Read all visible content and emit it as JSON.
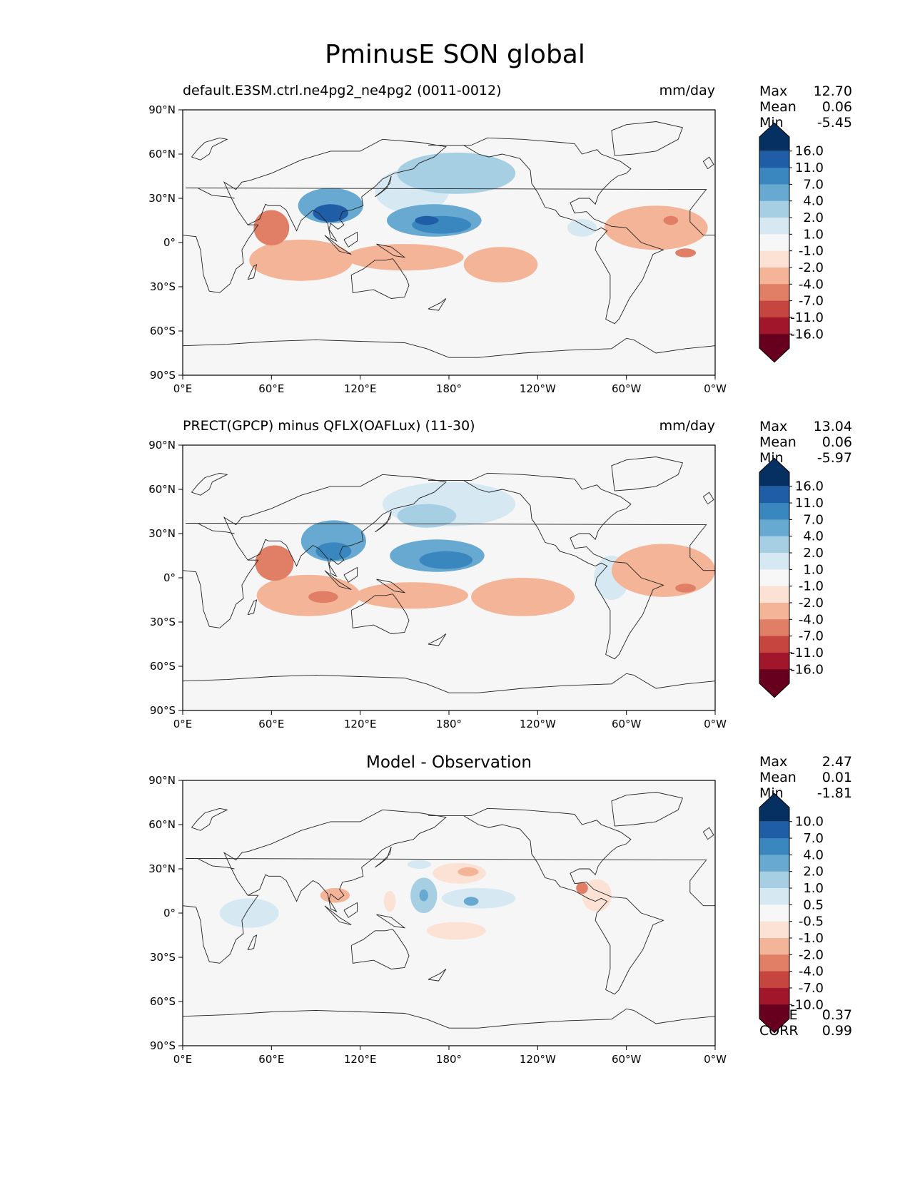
{
  "figure": {
    "title": "PminusE SON global"
  },
  "colors": {
    "blues": [
      "#053061",
      "#2166ac",
      "#4393c3",
      "#92c5de",
      "#d1e5f0",
      "#f7f7f7"
    ],
    "reds": [
      "#fddbc7",
      "#f4a582",
      "#d6604d",
      "#b2182b",
      "#67001f"
    ],
    "ocean": "#f6f6f6",
    "scale": [
      "#053061",
      "#1f5ea6",
      "#3a86bf",
      "#68a9d1",
      "#a7cfe4",
      "#d6e8f2",
      "#f7f7f7",
      "#fbe2d4",
      "#f4b497",
      "#e17e66",
      "#c6453f",
      "#a2162b",
      "#67001f"
    ]
  },
  "panels": [
    {
      "title_left": "default.E3SM.ctrl.ne4pg2_ne4pg2 (0011-0012)",
      "title_right": "mm/day",
      "stats": [
        {
          "label": "Max",
          "value": "12.70"
        },
        {
          "label": "Mean",
          "value": "0.06"
        },
        {
          "label": "Min",
          "value": "-5.45"
        }
      ],
      "colorbar_labels": [
        "16.0",
        "11.0",
        "7.0",
        "4.0",
        "2.0",
        "1.0",
        "-1.0",
        "-2.0",
        "-4.0",
        "-7.0",
        "-11.0",
        "-16.0"
      ]
    },
    {
      "title_left": "PRECT(GPCP) minus QFLX(OAFLux) (11-30)",
      "title_right": "mm/day",
      "stats": [
        {
          "label": "Max",
          "value": "13.04"
        },
        {
          "label": "Mean",
          "value": "0.06"
        },
        {
          "label": "Min",
          "value": "-5.97"
        }
      ],
      "colorbar_labels": [
        "16.0",
        "11.0",
        "7.0",
        "4.0",
        "2.0",
        "1.0",
        "-1.0",
        "-2.0",
        "-4.0",
        "-7.0",
        "-11.0",
        "-16.0"
      ]
    },
    {
      "title_center": "Model - Observation",
      "stats": [
        {
          "label": "Max",
          "value": "2.47"
        },
        {
          "label": "Mean",
          "value": "0.01"
        },
        {
          "label": "Min",
          "value": "-1.81"
        }
      ],
      "bottom_stats": [
        {
          "label": "RMSE",
          "value": "0.37"
        },
        {
          "label": "CORR",
          "value": "0.99"
        }
      ],
      "colorbar_labels": [
        "10.0",
        "7.0",
        "4.0",
        "2.0",
        "1.0",
        "0.5",
        "-0.5",
        "-1.0",
        "-2.0",
        "-4.0",
        "-7.0",
        "-10.0"
      ]
    }
  ],
  "chart_data": {
    "type": "heatmap",
    "title": "PminusE SON global",
    "units": "mm/day",
    "lon_ticks": [
      "0°E",
      "60°E",
      "120°E",
      "180°",
      "120°W",
      "60°W",
      "0°W"
    ],
    "lat_ticks": [
      "90°N",
      "60°N",
      "30°N",
      "0°",
      "30°S",
      "60°S",
      "90°S"
    ],
    "xlim": [
      0,
      360
    ],
    "ylim": [
      -90,
      90
    ],
    "panels": [
      {
        "name": "model",
        "features": [
          {
            "lon": 100,
            "lat": 25,
            "rlon": 22,
            "rlat": 12,
            "level": 3
          },
          {
            "lon": 100,
            "lat": 20,
            "rlon": 12,
            "rlat": 6,
            "level": 5
          },
          {
            "lon": 170,
            "lat": 15,
            "rlon": 32,
            "rlat": 11,
            "level": 3
          },
          {
            "lon": 175,
            "lat": 12,
            "rlon": 20,
            "rlat": 6,
            "level": 4
          },
          {
            "lon": 165,
            "lat": 15,
            "rlon": 8,
            "rlat": 3,
            "level": 5
          },
          {
            "lon": 185,
            "lat": 47,
            "rlon": 40,
            "rlat": 14,
            "level": 2
          },
          {
            "lon": 155,
            "lat": 35,
            "rlon": 25,
            "rlat": 15,
            "level": 1
          },
          {
            "lon": 60,
            "lat": 10,
            "rlon": 12,
            "rlat": 12,
            "level": -3
          },
          {
            "lon": 80,
            "lat": -12,
            "rlon": 35,
            "rlat": 14,
            "level": -2
          },
          {
            "lon": 150,
            "lat": -10,
            "rlon": 40,
            "rlat": 9,
            "level": -2
          },
          {
            "lon": 215,
            "lat": -15,
            "rlon": 25,
            "rlat": 12,
            "level": -2
          },
          {
            "lon": 320,
            "lat": 10,
            "rlon": 35,
            "rlat": 15,
            "level": -2
          },
          {
            "lon": 330,
            "lat": 15,
            "rlon": 5,
            "rlat": 3,
            "level": -3
          },
          {
            "lon": 340,
            "lat": -7,
            "rlon": 7,
            "rlat": 3,
            "level": -3
          },
          {
            "lon": 270,
            "lat": 10,
            "rlon": 10,
            "rlat": 6,
            "level": 1
          }
        ]
      },
      {
        "name": "observation",
        "features": [
          {
            "lon": 102,
            "lat": 25,
            "rlon": 22,
            "rlat": 14,
            "level": 3
          },
          {
            "lon": 102,
            "lat": 18,
            "rlon": 12,
            "rlat": 6,
            "level": 4
          },
          {
            "lon": 172,
            "lat": 15,
            "rlon": 32,
            "rlat": 11,
            "level": 3
          },
          {
            "lon": 178,
            "lat": 12,
            "rlon": 18,
            "rlat": 6,
            "level": 4
          },
          {
            "lon": 180,
            "lat": 50,
            "rlon": 45,
            "rlat": 15,
            "level": 1
          },
          {
            "lon": 165,
            "lat": 42,
            "rlon": 20,
            "rlat": 8,
            "level": 2
          },
          {
            "lon": 62,
            "lat": 10,
            "rlon": 13,
            "rlat": 12,
            "level": -3
          },
          {
            "lon": 85,
            "lat": -12,
            "rlon": 35,
            "rlat": 14,
            "level": -2
          },
          {
            "lon": 95,
            "lat": -13,
            "rlon": 10,
            "rlat": 4,
            "level": -3
          },
          {
            "lon": 155,
            "lat": -12,
            "rlon": 38,
            "rlat": 9,
            "level": -2
          },
          {
            "lon": 230,
            "lat": -13,
            "rlon": 35,
            "rlat": 13,
            "level": -2
          },
          {
            "lon": 325,
            "lat": 5,
            "rlon": 35,
            "rlat": 18,
            "level": -2
          },
          {
            "lon": 340,
            "lat": -7,
            "rlon": 7,
            "rlat": 3,
            "level": -3
          },
          {
            "lon": 290,
            "lat": 0,
            "rlon": 12,
            "rlat": 15,
            "level": 1
          }
        ]
      },
      {
        "name": "model_minus_observation",
        "features": [
          {
            "lon": 103,
            "lat": 12,
            "rlon": 10,
            "rlat": 5,
            "level": -2
          },
          {
            "lon": 163,
            "lat": 12,
            "rlon": 9,
            "rlat": 12,
            "level": 2
          },
          {
            "lon": 163,
            "lat": 12,
            "rlon": 3,
            "rlat": 4,
            "level": 3
          },
          {
            "lon": 200,
            "lat": 10,
            "rlon": 25,
            "rlat": 7,
            "level": 1
          },
          {
            "lon": 195,
            "lat": 8,
            "rlon": 5,
            "rlat": 3,
            "level": 3
          },
          {
            "lon": 187,
            "lat": 27,
            "rlon": 18,
            "rlat": 7,
            "level": -1
          },
          {
            "lon": 193,
            "lat": 28,
            "rlon": 7,
            "rlat": 3,
            "level": -2
          },
          {
            "lon": 280,
            "lat": 12,
            "rlon": 10,
            "rlat": 11,
            "level": -1
          },
          {
            "lon": 270,
            "lat": 17,
            "rlon": 4,
            "rlat": 4,
            "level": -3
          },
          {
            "lon": 185,
            "lat": -12,
            "rlon": 20,
            "rlat": 6,
            "level": -1
          },
          {
            "lon": 140,
            "lat": 8,
            "rlon": 4,
            "rlat": 7,
            "level": -1
          },
          {
            "lon": 45,
            "lat": 0,
            "rlon": 20,
            "rlat": 10,
            "level": 1
          },
          {
            "lon": 160,
            "lat": 33,
            "rlon": 8,
            "rlat": 3,
            "level": 1
          }
        ]
      }
    ]
  }
}
